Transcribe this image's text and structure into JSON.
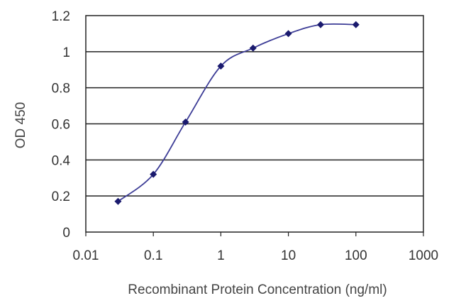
{
  "chart_data": {
    "type": "line",
    "xscale": "log",
    "xlabel": "Recombinant Protein Concentration (ng/ml)",
    "ylabel": "OD 450",
    "xlim": [
      0.01,
      1000
    ],
    "ylim": [
      0,
      1.2
    ],
    "xticks": [
      0.01,
      0.1,
      1,
      10,
      100,
      1000
    ],
    "xtick_labels": [
      "0.01",
      "0.1",
      "1",
      "10",
      "100",
      "1000"
    ],
    "yticks": [
      0,
      0.2,
      0.4,
      0.6,
      0.8,
      1,
      1.2
    ],
    "ytick_labels": [
      "0",
      "0.2",
      "0.4",
      "0.6",
      "0.8",
      "1",
      "1.2"
    ],
    "grid": "horizontal",
    "legend": "none",
    "series": [
      {
        "x": [
          0.03,
          0.1,
          0.3,
          1,
          3,
          10,
          30,
          100
        ],
        "y": [
          0.17,
          0.32,
          0.61,
          0.92,
          1.02,
          1.1,
          1.15,
          1.15
        ],
        "color": "#3c3c96",
        "marker": "diamond",
        "marker_color": "#1a1a6e"
      }
    ]
  }
}
